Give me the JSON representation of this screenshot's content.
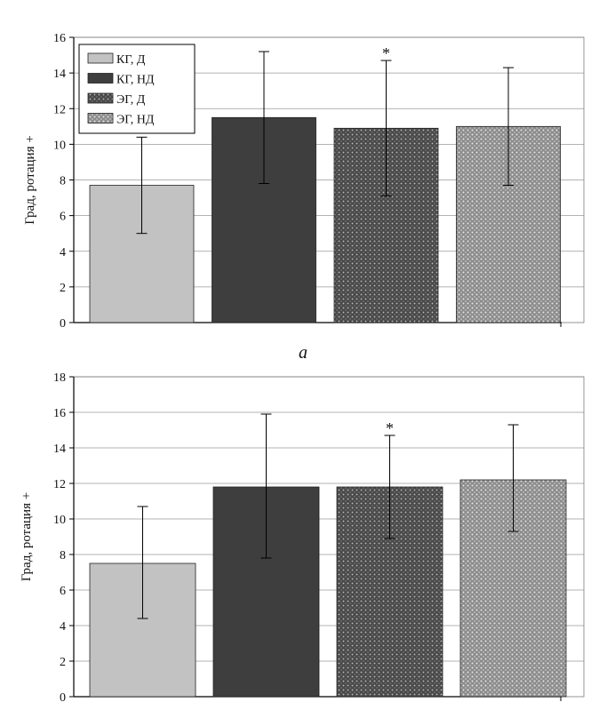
{
  "chart_data": [
    {
      "type": "bar",
      "panel_label": "а",
      "categories": [
        "КГ, Д",
        "КГ, НД",
        "ЭГ, Д",
        "ЭГ, НД"
      ],
      "values": [
        7.7,
        11.5,
        10.9,
        11.0
      ],
      "error_low": [
        5.0,
        7.8,
        7.1,
        7.7
      ],
      "error_high": [
        10.4,
        15.2,
        14.7,
        14.3
      ],
      "significance": [
        "",
        "",
        "*",
        ""
      ],
      "ylabel": "Град, ротация +",
      "xlabel": "",
      "ylim": [
        0,
        16
      ],
      "yticks": [
        0,
        2,
        4,
        6,
        8,
        10,
        12,
        14,
        16
      ],
      "grid": true,
      "legend": {
        "position": "top-left",
        "entries": [
          "КГ, Д",
          "КГ, НД",
          "ЭГ, Д",
          "ЭГ, НД"
        ]
      }
    },
    {
      "type": "bar",
      "panel_label": "",
      "categories": [
        "КГ, Д",
        "КГ, НД",
        "ЭГ, Д",
        "ЭГ, НД"
      ],
      "values": [
        7.5,
        11.8,
        11.8,
        12.2
      ],
      "error_low": [
        4.4,
        7.8,
        8.9,
        9.3
      ],
      "error_high": [
        10.7,
        15.9,
        14.7,
        15.3
      ],
      "significance": [
        "",
        "",
        "*",
        ""
      ],
      "ylabel": "Град, ротация +",
      "xlabel": "",
      "ylim": [
        0,
        18
      ],
      "yticks": [
        0,
        2,
        4,
        6,
        8,
        10,
        12,
        14,
        16,
        18
      ],
      "grid": true
    }
  ],
  "series_styles": [
    {
      "name": "КГ, Д",
      "pattern": "solid-light",
      "color": "#c2c2c2"
    },
    {
      "name": "КГ, НД",
      "pattern": "solid-dark",
      "color": "#3e3e3e"
    },
    {
      "name": "ЭГ, Д",
      "pattern": "dots-on-dark",
      "color": "#5a5a5a"
    },
    {
      "name": "ЭГ, НД",
      "pattern": "dots-on-light",
      "color": "#9a9a9a"
    }
  ]
}
